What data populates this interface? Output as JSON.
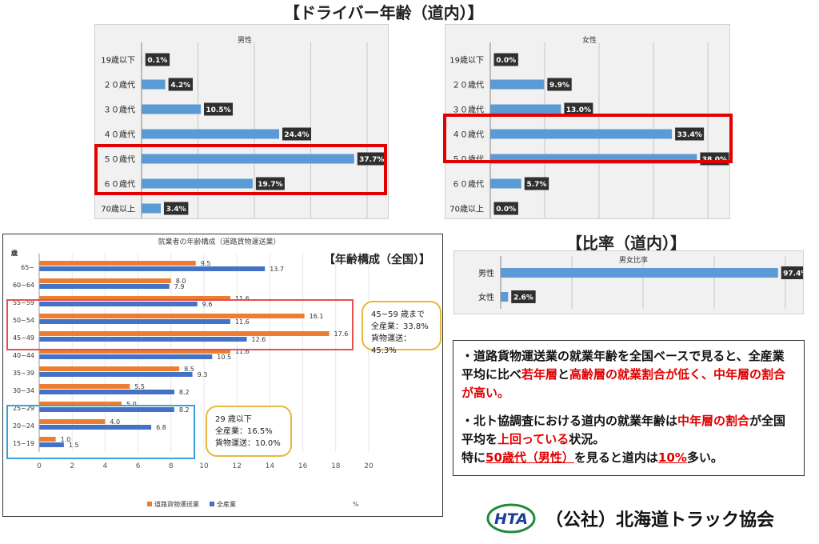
{
  "headings": {
    "driver_age": "【ドライバー年齢（道内）】",
    "ratio": "【比率（道内）】",
    "age_composition": "【年齢構成（全国）】"
  },
  "chart_data": [
    {
      "id": "male",
      "type": "bar",
      "orientation": "horizontal",
      "title": "男性",
      "categories": [
        "19歳以下",
        "２０歳代",
        "３０歳代",
        "４０歳代",
        "５０歳代",
        "６０歳代",
        "70歳以上"
      ],
      "values": [
        0.1,
        4.2,
        10.5,
        24.4,
        37.7,
        19.7,
        3.4
      ],
      "value_labels": [
        "0.1%",
        "4.2%",
        "10.5%",
        "24.4%",
        "37.7%",
        "19.7%",
        "3.4%"
      ],
      "xlim": [
        0,
        40
      ],
      "grid": true,
      "color": "#5b9bd5"
    },
    {
      "id": "female",
      "type": "bar",
      "orientation": "horizontal",
      "title": "女性",
      "categories": [
        "19歳以下",
        "２０歳代",
        "３０歳代",
        "４０歳代",
        "５０歳代",
        "６０歳代",
        "70歳以上"
      ],
      "values": [
        0.0,
        9.9,
        13.0,
        33.4,
        38.0,
        5.7,
        0.0
      ],
      "value_labels": [
        "0.0%",
        "9.9%",
        "13.0%",
        "33.4%",
        "38.0%",
        "5.7%",
        "0.0%"
      ],
      "xlim": [
        0,
        40
      ],
      "grid": true,
      "color": "#5b9bd5"
    },
    {
      "id": "ratio",
      "type": "bar",
      "orientation": "horizontal",
      "title": "男女比率",
      "categories": [
        "男性",
        "女性"
      ],
      "values": [
        97.4,
        2.6
      ],
      "value_labels": [
        "97.4%",
        "2.6%"
      ],
      "xlim": [
        0,
        100
      ],
      "grid": true,
      "color": "#5b9bd5"
    },
    {
      "id": "national",
      "type": "bar",
      "orientation": "horizontal",
      "title": "就業者の年齢構成（道路貨物運送業）",
      "ylabel": "歳",
      "xlabel": "%",
      "categories": [
        "65~",
        "60~64",
        "55~59",
        "50~54",
        "45~49",
        "40~44",
        "35~39",
        "30~34",
        "25~29",
        "20~24",
        "15~19"
      ],
      "x_ticks": [
        0,
        2,
        4,
        6,
        8,
        10,
        12,
        14,
        16,
        18,
        20
      ],
      "xlim": [
        0,
        20
      ],
      "series": [
        {
          "name": "道路貨物運送業",
          "color": "#ed7d31",
          "values": [
            9.5,
            8.0,
            11.6,
            16.1,
            17.6,
            11.6,
            8.5,
            5.5,
            5.0,
            4.0,
            1.0
          ],
          "labels": [
            "9.5",
            "8.0",
            "11.6",
            "16.1",
            "17.6",
            "11.6",
            "8.5",
            "5.5",
            "5.0",
            "4.0",
            "1.0"
          ]
        },
        {
          "name": "全産業",
          "color": "#4472c4",
          "values": [
            13.7,
            7.9,
            9.6,
            11.6,
            12.6,
            10.5,
            9.3,
            8.2,
            8.2,
            6.8,
            1.5
          ],
          "labels": [
            "13.7",
            "7.9",
            "9.6",
            "11.6",
            "12.6",
            "10.5",
            "9.3",
            "8.2",
            "8.2",
            "6.8",
            "1.5"
          ]
        }
      ]
    }
  ],
  "notes": {
    "middle": {
      "line1": "45~59 歳まで",
      "line2": "全産業：33.8%",
      "line3": "貨物運送：45.3%"
    },
    "young": {
      "line1": "29 歳以下",
      "line2": "全産業：16.5%",
      "line3": "貨物運送：10.0%"
    }
  },
  "summary": {
    "p1_a": "・道路貨物運送業の就業年齢を全国ベースで見ると、全産業平均に比べ",
    "p1_b": "若年層",
    "p1_c": "と",
    "p1_d": "高齢層の就業割合が低く、中年層の割合が高い。",
    "p2_a": "・北ト協調査における道内の就業年齢は",
    "p2_b": "中年層の割合",
    "p2_c": "が全国平均を",
    "p2_d": "上回っている",
    "p2_e": "状況。",
    "p3_a": "特に",
    "p3_b": "50歳代（男性）",
    "p3_c": "を見ると道内は",
    "p3_d": "10%",
    "p3_e": "多い。"
  },
  "footer": {
    "logo_text": "HTA",
    "org": "（公社）北海道トラック協会"
  },
  "colors": {
    "accent_red": "#e30000",
    "bar_blue": "#5b9bd5",
    "orange": "#ed7d31",
    "navy": "#4472c4",
    "note_yellow": "#e7b740"
  }
}
